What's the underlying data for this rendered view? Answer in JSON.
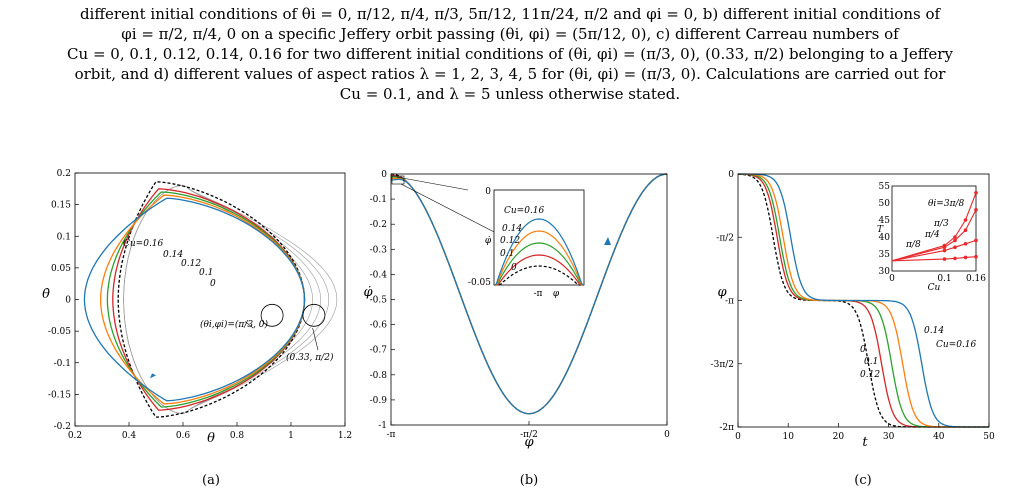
{
  "caption": {
    "lines": [
      "different initial conditions of θi = 0, π/12, π/4, π/3, 5π/12, 11π/24, π/2 and φi = 0, b) different initial conditions of",
      "φi = π/2, π/4, 0 on a specific Jeffery orbit passing (θi, φi) = (5π/12, 0), c) different Carreau numbers of",
      "Cu = 0, 0.1, 0.12, 0.14, 0.16 for two different initial conditions of (θi, φi) = (π/3, 0), (0.33, π/2) belonging to a Jeffery",
      "orbit, and d) different values of aspect ratios λ = 1, 2, 3, 4, 5 for (θi, φi) = (π/3, 0). Calculations are carried out for",
      "Cu = 0.1, and λ = 5 unless otherwise stated."
    ]
  },
  "colors": {
    "cu_0": "#000000",
    "cu_0_1": "#d62728",
    "cu_0_12": "#2ca02c",
    "cu_0_14": "#ff7f0e",
    "cu_0_16": "#1f77b4",
    "jeffery_orbits": "#9a9a9a",
    "inset_T": "#e8282b"
  },
  "chart_data": [
    {
      "type": "line",
      "panel_label": "(a)",
      "xlabel": "θ",
      "ylabel": "θ̇",
      "xlim": [
        0.2,
        1.2
      ],
      "ylim": [
        -0.2,
        0.2
      ],
      "xticks": [
        "0.2",
        "0.4",
        "0.6",
        "0.8",
        "1",
        "1.2"
      ],
      "yticks": [
        "0.2",
        "0.15",
        "0.1",
        "0.05",
        "0",
        "-0.05",
        "-0.1",
        "-0.15",
        "-0.2"
      ],
      "annotations": [
        "Cu=0.16",
        "0.14",
        "0.12",
        "0.1",
        "0",
        "(θi,φi)=(π/3, 0)",
        "(0.33, π/2)"
      ],
      "series": [
        {
          "name": "Cu=0",
          "style": "dashed",
          "xmin": 0.36,
          "xmax": 1.05,
          "apex_y": 0.186
        },
        {
          "name": "Cu=0.1",
          "xmin": 0.34,
          "xmax": 1.05,
          "apex_y": 0.175
        },
        {
          "name": "Cu=0.12",
          "xmin": 0.32,
          "xmax": 1.05,
          "apex_y": 0.17
        },
        {
          "name": "Cu=0.14",
          "xmin": 0.295,
          "xmax": 1.05,
          "apex_y": 0.165
        },
        {
          "name": "Cu=0.16",
          "xmin": 0.235,
          "xmax": 1.05,
          "apex_y": 0.16
        }
      ],
      "jeffery_orbits_xmax": [
        1.08,
        1.11,
        1.14,
        1.17
      ]
    },
    {
      "type": "line",
      "panel_label": "(b)",
      "xlabel": "φ",
      "ylabel": "φ̇",
      "xlim": [
        "-π",
        "0"
      ],
      "ylim": [
        -1,
        0
      ],
      "xticks": [
        "-π",
        "-π/2",
        "0"
      ],
      "yticks": [
        "0",
        "-0.1",
        "-0.2",
        "-0.3",
        "-0.4",
        "-0.5",
        "-0.6",
        "-0.7",
        "-0.8",
        "-0.9",
        "-1"
      ],
      "min_value": -0.955,
      "inset": {
        "yticks": [
          "0",
          "-0.05"
        ],
        "xticks": [
          "-π"
        ],
        "xlabel": "φ",
        "ylabel": "φ̇",
        "labels": [
          "Cu=0.16",
          "0.14",
          "0.12",
          "0.1",
          "0"
        ]
      }
    },
    {
      "type": "line",
      "panel_label": "(c)",
      "xlabel": "t",
      "ylabel": "φ",
      "xlim": [
        0,
        50
      ],
      "ylim": [
        "-2π",
        "0"
      ],
      "xticks": [
        "0",
        "10",
        "20",
        "30",
        "40",
        "50"
      ],
      "yticks": [
        "0",
        "-π/2",
        "-π",
        "-3π/2",
        "-2π"
      ],
      "annotations": [
        "0",
        "0.1",
        "0.12",
        "0.14",
        "Cu=0.16"
      ],
      "series": [
        {
          "name": "Cu=0",
          "style": "dashed",
          "t1": 7.0,
          "t2": 26.0
        },
        {
          "name": "Cu=0.1",
          "t1": 7.8,
          "t2": 28.6
        },
        {
          "name": "Cu=0.12",
          "t1": 8.3,
          "t2": 30.6
        },
        {
          "name": "Cu=0.14",
          "t1": 9.0,
          "t2": 32.8
        },
        {
          "name": "Cu=0.16",
          "t1": 10.5,
          "t2": 36.6
        }
      ],
      "inset": {
        "xlabel": "Cu",
        "ylabel": "T",
        "xlim": [
          0,
          0.16
        ],
        "ylim": [
          30,
          55
        ],
        "xticks": [
          "0",
          "0.1",
          "0.16"
        ],
        "yticks": [
          "30",
          "35",
          "40",
          "45",
          "50",
          "55"
        ],
        "series": [
          {
            "name": "θi=3π/8",
            "x": [
              0,
              0.1,
              0.12,
              0.14,
              0.16
            ],
            "y": [
              33,
              37.5,
              40,
              45,
              53
            ]
          },
          {
            "name": "π/3",
            "x": [
              0,
              0.1,
              0.12,
              0.14,
              0.16
            ],
            "y": [
              33,
              37,
              39,
              42,
              48
            ]
          },
          {
            "name": "π/4",
            "x": [
              0,
              0.1,
              0.12,
              0.14,
              0.16
            ],
            "y": [
              33,
              36,
              37,
              38,
              39
            ]
          },
          {
            "name": "π/8",
            "x": [
              0,
              0.1,
              0.12,
              0.14,
              0.16
            ],
            "y": [
              33,
              33.5,
              33.7,
              34,
              34.2
            ]
          }
        ]
      }
    }
  ]
}
